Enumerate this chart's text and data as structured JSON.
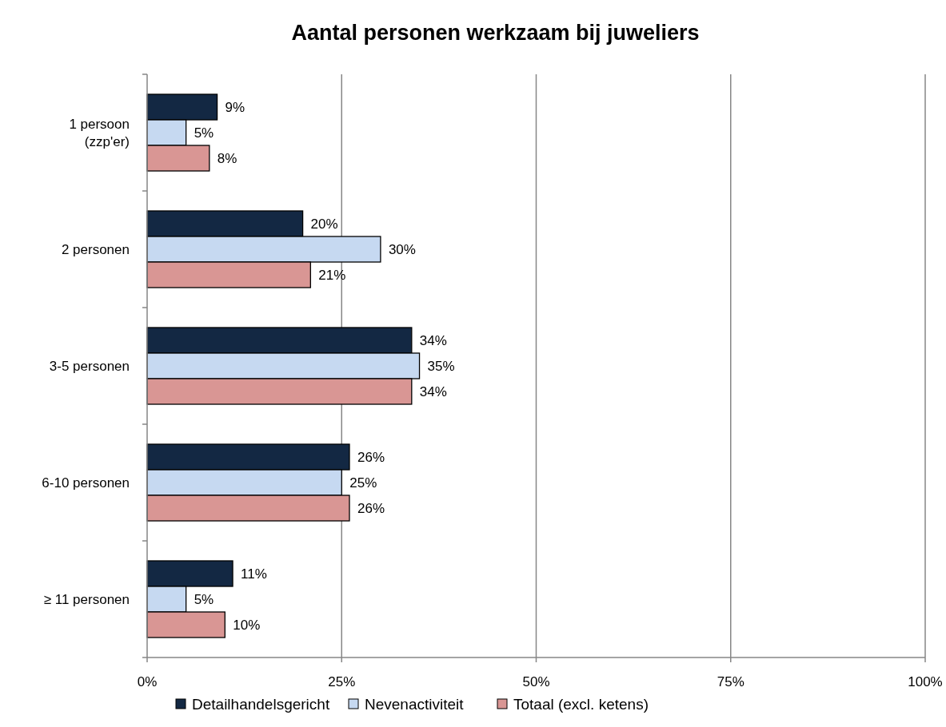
{
  "chart_data": {
    "type": "bar",
    "orientation": "horizontal",
    "title": "Aantal personen werkzaam bij juweliers",
    "categories": [
      "1 persoon\n(zzp'er)",
      "2 personen",
      "3-5 personen",
      "6-10 personen",
      "≥ 11 personen"
    ],
    "series": [
      {
        "name": "Detailhandelsgericht",
        "color": "#132843",
        "values": [
          9,
          20,
          34,
          26,
          11
        ],
        "value_labels": [
          "9%",
          "20%",
          "34%",
          "26%",
          "11%"
        ]
      },
      {
        "name": "Nevenactiviteit",
        "color": "#c6d9f1",
        "values": [
          5,
          30,
          35,
          25,
          5
        ],
        "value_labels": [
          "5%",
          "30%",
          "35%",
          "25%",
          "5%"
        ]
      },
      {
        "name": "Totaal (excl. ketens)",
        "color": "#d99694",
        "values": [
          8,
          21,
          34,
          26,
          10
        ],
        "value_labels": [
          "8%",
          "21%",
          "34%",
          "26%",
          "10%"
        ]
      }
    ],
    "xlim": [
      0,
      100
    ],
    "xticks": [
      {
        "value": 0,
        "label": "0%"
      },
      {
        "value": 25,
        "label": "25%"
      },
      {
        "value": 50,
        "label": "50%"
      },
      {
        "value": 75,
        "label": "75%"
      },
      {
        "value": 100,
        "label": "100%"
      }
    ],
    "grid": "x",
    "legend": "bottom"
  }
}
